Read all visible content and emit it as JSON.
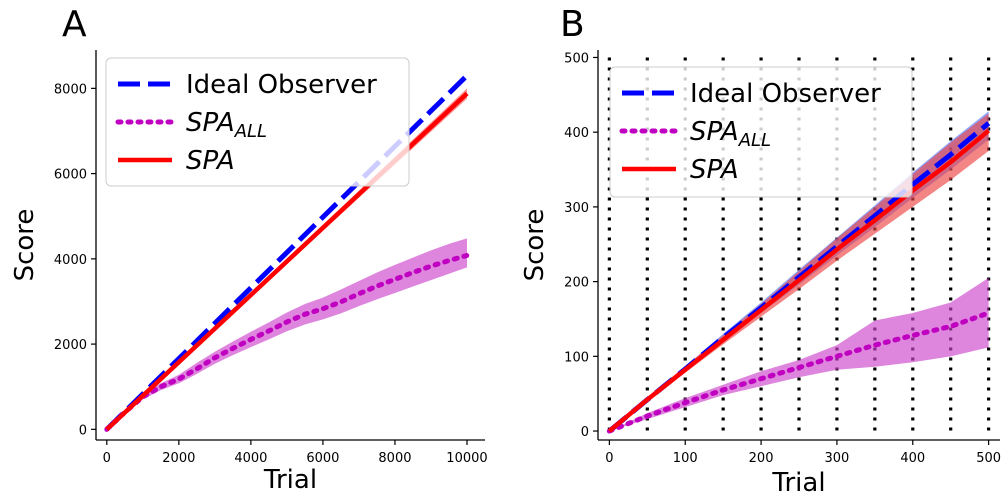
{
  "chart_data": [
    {
      "panel": "A",
      "type": "line",
      "xlabel": "Trial",
      "ylabel": "Score",
      "xlim": [
        -300,
        10500
      ],
      "ylim": [
        -250,
        8900
      ],
      "xticks": [
        0,
        2000,
        4000,
        6000,
        8000,
        10000
      ],
      "xtick_labels": [
        "0",
        "2000",
        "4000",
        "6000",
        "8000",
        "10000"
      ],
      "yticks": [
        0,
        2000,
        4000,
        6000,
        8000
      ],
      "ytick_labels": [
        "0",
        "2000",
        "4000",
        "6000",
        "8000"
      ],
      "legend_position": "top-left",
      "series": [
        {
          "name": "Ideal Observer",
          "color": "#0000ff",
          "style": "dashed",
          "x": [
            0,
            10000
          ],
          "y": [
            0,
            8300
          ]
        },
        {
          "name": "SPA_ALL",
          "label_main": "SPA",
          "label_sub": "ALL",
          "color": "#c000c0",
          "band_color": "#cc44cc",
          "style": "dotted",
          "x": [
            0,
            500,
            1000,
            1500,
            2000,
            2500,
            3000,
            3500,
            4000,
            4500,
            5000,
            5500,
            6000,
            6500,
            7000,
            7500,
            8000,
            8500,
            9000,
            9500,
            10000
          ],
          "y": [
            0,
            400,
            760,
            1000,
            1180,
            1420,
            1680,
            1900,
            2110,
            2310,
            2520,
            2700,
            2830,
            2990,
            3180,
            3360,
            3520,
            3680,
            3830,
            3960,
            4080
          ],
          "lower": [
            0,
            370,
            700,
            920,
            1080,
            1300,
            1540,
            1740,
            1930,
            2110,
            2300,
            2460,
            2580,
            2720,
            2890,
            3050,
            3200,
            3350,
            3500,
            3650,
            3800
          ],
          "upper": [
            0,
            430,
            820,
            1080,
            1280,
            1560,
            1820,
            2060,
            2290,
            2510,
            2740,
            2940,
            3090,
            3280,
            3480,
            3680,
            3860,
            4030,
            4200,
            4350,
            4480
          ]
        },
        {
          "name": "SPA",
          "color": "#ff0000",
          "band_color": "#ff5555",
          "style": "solid",
          "x": [
            0,
            10000
          ],
          "y": [
            0,
            7880
          ],
          "lower": [
            0,
            7760
          ],
          "upper": [
            0,
            8000
          ]
        }
      ]
    },
    {
      "panel": "B",
      "type": "line",
      "xlabel": "Trial",
      "ylabel": "Score",
      "xlim": [
        -15,
        515
      ],
      "ylim": [
        -12,
        510
      ],
      "xticks": [
        0,
        100,
        200,
        300,
        400,
        500
      ],
      "xtick_labels": [
        "0",
        "100",
        "200",
        "300",
        "400",
        "500"
      ],
      "yticks": [
        0,
        100,
        200,
        300,
        400,
        500
      ],
      "ytick_labels": [
        "0",
        "100",
        "200",
        "300",
        "400",
        "500"
      ],
      "vlines": [
        0,
        50,
        100,
        150,
        200,
        250,
        300,
        350,
        400,
        450,
        500
      ],
      "legend_position": "top-left",
      "series": [
        {
          "name": "Ideal Observer",
          "color": "#0000ff",
          "band_color": "#5577ff",
          "style": "dashed",
          "x": [
            0,
            50,
            100,
            150,
            200,
            250,
            300,
            350,
            400,
            450,
            500
          ],
          "y": [
            0,
            42,
            83,
            125,
            165,
            206,
            247,
            288,
            330,
            370,
            412
          ],
          "lower": [
            0,
            40,
            80,
            120,
            158,
            196,
            235,
            273,
            312,
            350,
            390
          ],
          "upper": [
            0,
            44,
            86,
            130,
            172,
            216,
            259,
            302,
            346,
            388,
            428
          ]
        },
        {
          "name": "SPA_ALL",
          "label_main": "SPA",
          "label_sub": "ALL",
          "color": "#c000c0",
          "band_color": "#cc44cc",
          "style": "dotted",
          "x": [
            0,
            50,
            100,
            150,
            200,
            250,
            300,
            350,
            400,
            450,
            500
          ],
          "y": [
            0,
            20,
            38,
            55,
            70,
            85,
            100,
            115,
            128,
            140,
            158
          ],
          "lower": [
            0,
            16,
            32,
            48,
            60,
            72,
            82,
            86,
            92,
            100,
            112
          ],
          "upper": [
            0,
            24,
            44,
            62,
            80,
            95,
            115,
            148,
            158,
            172,
            205
          ]
        },
        {
          "name": "SPA",
          "color": "#ff0000",
          "band_color": "#ee4444",
          "style": "solid",
          "x": [
            0,
            50,
            100,
            150,
            200,
            250,
            300,
            350,
            400,
            450,
            500
          ],
          "y": [
            0,
            42,
            82,
            122,
            162,
            202,
            243,
            282,
            322,
            360,
            402
          ],
          "lower": [
            0,
            39,
            78,
            116,
            153,
            190,
            228,
            264,
            300,
            336,
            375
          ],
          "upper": [
            0,
            45,
            87,
            128,
            170,
            214,
            258,
            300,
            344,
            386,
            425
          ]
        }
      ]
    }
  ]
}
